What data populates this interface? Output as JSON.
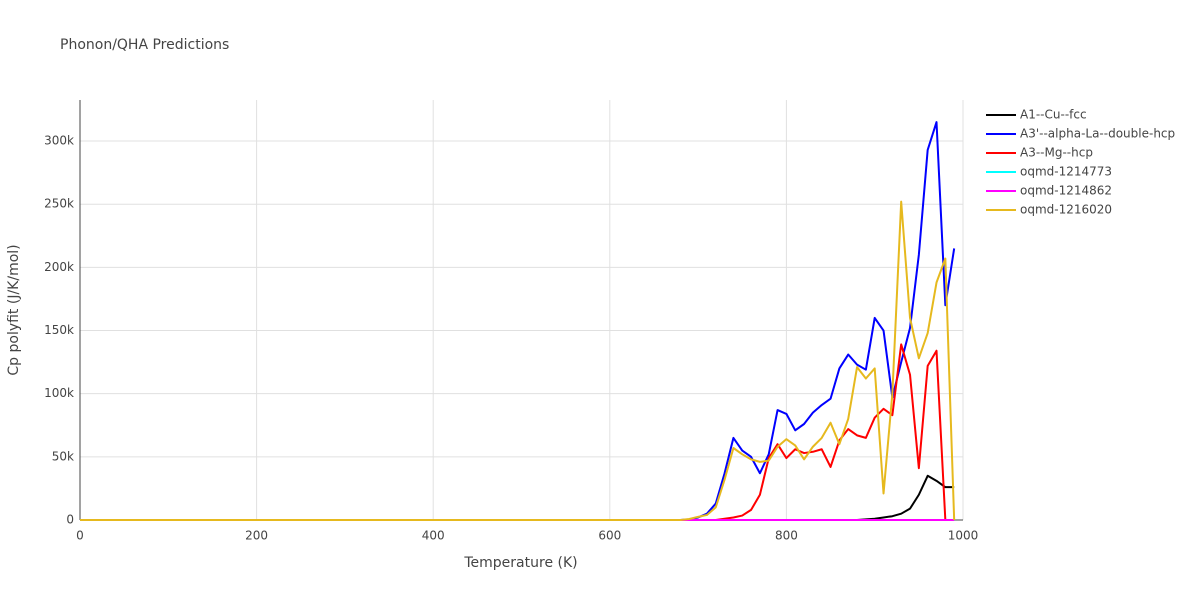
{
  "chart_data": {
    "type": "line",
    "title": "Phonon/QHA Predictions",
    "x_label": "Temperature (K)",
    "y_label": "Cp polyfit (J/K/mol)",
    "x": [
      0,
      100,
      200,
      300,
      400,
      500,
      600,
      680,
      690,
      700,
      710,
      720,
      730,
      740,
      750,
      760,
      770,
      780,
      790,
      800,
      810,
      820,
      830,
      840,
      850,
      860,
      870,
      880,
      890,
      900,
      910,
      920,
      930,
      940,
      950,
      960,
      970,
      980,
      990
    ],
    "xlim": [
      0,
      1000
    ],
    "xticks": [
      0,
      200,
      400,
      600,
      800,
      1000
    ],
    "ylim": [
      0,
      332500
    ],
    "yticks": [
      0,
      {
        "value": 50000,
        "label": "50k"
      },
      {
        "value": 100000,
        "label": "100k"
      },
      {
        "value": 150000,
        "label": "150k"
      },
      {
        "value": 200000,
        "label": "200k"
      },
      {
        "value": 250000,
        "label": "250k"
      },
      {
        "value": 300000,
        "label": "300k"
      }
    ],
    "grid": true,
    "legend": "right",
    "series": [
      {
        "name": "A1--Cu--fcc",
        "color": "#000000",
        "values": [
          0,
          0,
          0,
          0,
          0,
          0,
          0,
          0,
          0,
          0,
          0,
          0,
          0,
          0,
          0,
          0,
          0,
          0,
          0,
          0,
          0,
          0,
          0,
          0,
          0,
          0,
          0,
          0,
          500,
          1000,
          2000,
          3000,
          5000,
          9000,
          20000,
          35000,
          31000,
          26000,
          26000
        ]
      },
      {
        "name": "A3'--alpha-La--double-hcp",
        "color": "#0000ff",
        "values": [
          0,
          0,
          0,
          0,
          0,
          0,
          0,
          0,
          500,
          2000,
          5000,
          13000,
          37000,
          65000,
          55000,
          50000,
          37000,
          52000,
          87000,
          84000,
          71000,
          76000,
          85000,
          91000,
          96000,
          120000,
          131000,
          123000,
          119000,
          160000,
          150000,
          97000,
          125000,
          152000,
          210000,
          293000,
          315000,
          170000,
          215000
        ]
      },
      {
        "name": "A3--Mg--hcp",
        "color": "#ff0000",
        "values": [
          0,
          0,
          0,
          0,
          0,
          0,
          0,
          0,
          0,
          0,
          0,
          0,
          1000,
          2000,
          3500,
          8000,
          20000,
          49000,
          60000,
          49000,
          56000,
          53000,
          54000,
          56000,
          42000,
          63000,
          72000,
          67000,
          65000,
          81000,
          88000,
          83000,
          139000,
          115000,
          41000,
          122000,
          134000,
          0,
          null
        ]
      },
      {
        "name": "oqmd-1214773",
        "color": "#00ffff",
        "values": [
          0,
          0,
          0,
          0,
          0,
          0,
          0,
          0,
          0,
          0,
          0,
          0,
          0,
          0,
          0,
          0,
          0,
          0,
          0,
          0,
          0,
          0,
          0,
          0,
          0,
          0,
          0,
          0,
          0,
          0,
          0,
          0,
          0,
          0,
          0,
          0,
          0,
          0,
          0
        ]
      },
      {
        "name": "oqmd-1214862",
        "color": "#ff00ff",
        "values": [
          0,
          0,
          0,
          0,
          0,
          0,
          0,
          0,
          0,
          0,
          0,
          0,
          0,
          0,
          0,
          0,
          0,
          0,
          0,
          0,
          0,
          0,
          0,
          0,
          0,
          0,
          0,
          0,
          0,
          0,
          0,
          0,
          0,
          0,
          0,
          0,
          0,
          0,
          0
        ]
      },
      {
        "name": "oqmd-1216020",
        "color": "#e6b91e",
        "values": [
          0,
          0,
          0,
          0,
          0,
          0,
          0,
          0,
          800,
          2500,
          4000,
          10000,
          32000,
          57000,
          52000,
          48000,
          46000,
          47000,
          58000,
          64000,
          59000,
          48000,
          58000,
          65000,
          77000,
          60000,
          80000,
          121000,
          112000,
          120000,
          21000,
          100000,
          252000,
          160000,
          128000,
          148000,
          188000,
          207000,
          0
        ]
      }
    ]
  }
}
